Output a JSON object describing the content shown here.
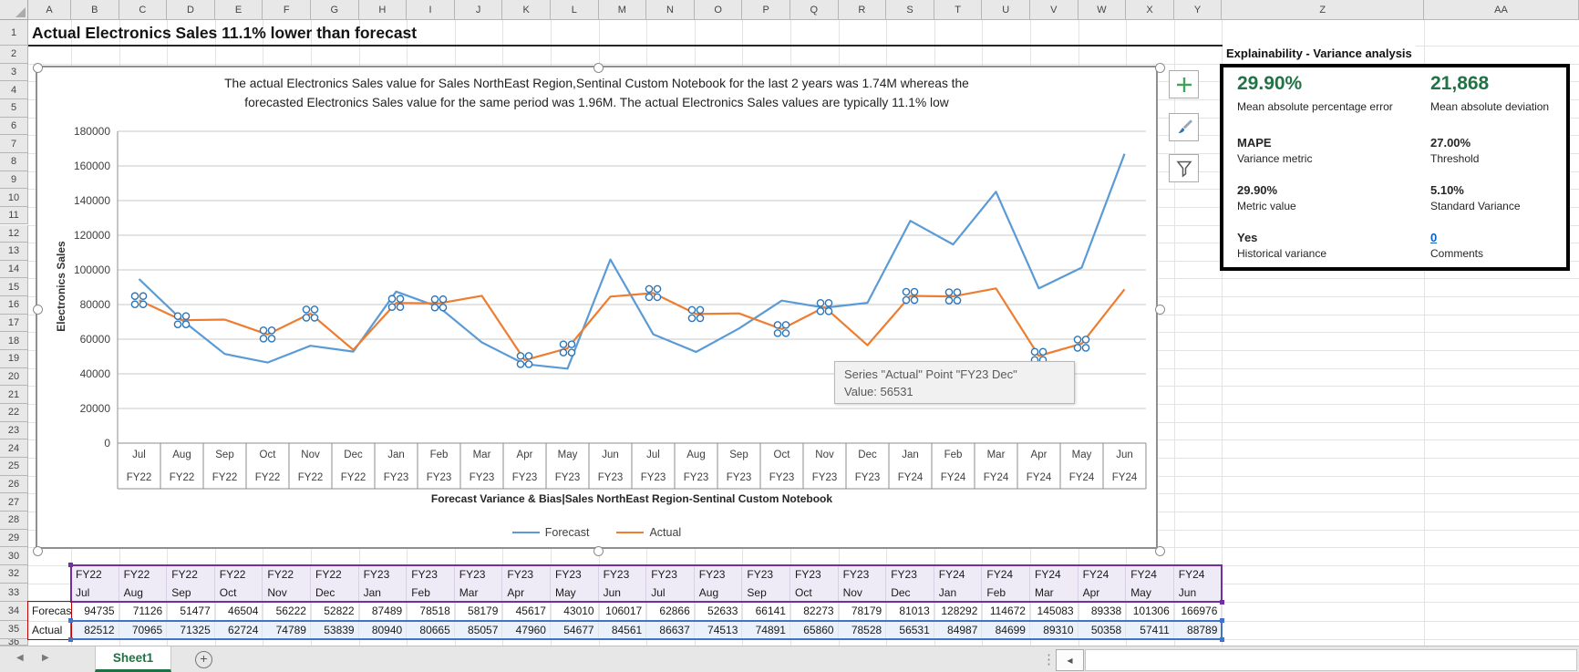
{
  "app": {
    "title_cell": "Actual Electronics Sales 11.1% lower than forecast"
  },
  "spreadsheet": {
    "columns": [
      "A",
      "B",
      "C",
      "D",
      "E",
      "F",
      "G",
      "H",
      "I",
      "J",
      "K",
      "L",
      "M",
      "N",
      "O",
      "P",
      "Q",
      "R",
      "S",
      "T",
      "U",
      "V",
      "W",
      "X",
      "Y",
      "Z",
      "AA"
    ],
    "rows": [
      1,
      2,
      3,
      4,
      5,
      6,
      7,
      8,
      9,
      10,
      11,
      12,
      13,
      14,
      15,
      16,
      17,
      18,
      19,
      20,
      21,
      22,
      23,
      24,
      25,
      26,
      27,
      28,
      29,
      30,
      32,
      33,
      34,
      35,
      36
    ],
    "sheet_tab": "Sheet1",
    "nav_back": "◀",
    "nav_fwd": "▶",
    "new_sheet": "+",
    "scroll_left_arrow": "◀",
    "scroll_dots": "⋮"
  },
  "chart_data": {
    "type": "line",
    "title_lines": [
      "The actual Electronics Sales value for Sales NorthEast Region,Sentinal Custom Notebook for the last 2 years was 1.74M whereas the",
      "forecasted Electronics Sales value for the same period was 1.96M. The actual Electronics Sales values are typically 11.1% low"
    ],
    "ylabel": "Electronics Sales",
    "xlabel": "Forecast Variance & Bias|Sales NorthEast Region-Sentinal Custom Notebook",
    "ylim": [
      0,
      180000
    ],
    "ytick_step": 20000,
    "ytick_labels": [
      "180000",
      "160000",
      "140000",
      "120000",
      "100000",
      "80000",
      "60000",
      "40000",
      "20000",
      "0"
    ],
    "grid": true,
    "legend_position": "bottom",
    "categories_month": [
      "Jul",
      "Aug",
      "Sep",
      "Oct",
      "Nov",
      "Dec",
      "Jan",
      "Feb",
      "Mar",
      "Apr",
      "May",
      "Jun",
      "Jul",
      "Aug",
      "Sep",
      "Oct",
      "Nov",
      "Dec",
      "Jan",
      "Feb",
      "Mar",
      "Apr",
      "May",
      "Jun"
    ],
    "categories_fy": [
      "FY22",
      "FY22",
      "FY22",
      "FY22",
      "FY22",
      "FY22",
      "FY23",
      "FY23",
      "FY23",
      "FY23",
      "FY23",
      "FY23",
      "FY23",
      "FY23",
      "FY23",
      "FY23",
      "FY23",
      "FY23",
      "FY24",
      "FY24",
      "FY24",
      "FY24",
      "FY24",
      "FY24"
    ],
    "series": [
      {
        "name": "Forecast",
        "color": "#5B9BD5",
        "values": [
          94735,
          71126,
          51477,
          46504,
          56222,
          52822,
          87489,
          78518,
          58179,
          45617,
          43010,
          106017,
          62866,
          52633,
          66141,
          82273,
          78179,
          81013,
          128292,
          114672,
          145083,
          89338,
          101306,
          166976
        ]
      },
      {
        "name": "Actual",
        "color": "#ED7D31",
        "selected": true,
        "values": [
          82512,
          70965,
          71325,
          62724,
          74789,
          53839,
          80940,
          80665,
          85057,
          47960,
          54677,
          84561,
          86637,
          74513,
          74891,
          65860,
          78528,
          56531,
          84987,
          84699,
          89310,
          50358,
          57411,
          88789
        ],
        "marked_point_indices": [
          0,
          1,
          3,
          4,
          6,
          7,
          9,
          10,
          12,
          13,
          15,
          16,
          18,
          19,
          21,
          22
        ]
      }
    ]
  },
  "chart_tooltip": {
    "line1": "Series \"Actual\" Point \"FY23 Dec\"",
    "line2": "Value: 56531"
  },
  "panel": {
    "header": "Explainability - Variance analysis",
    "metrics": [
      {
        "value": "29.90%",
        "label": "Mean absolute percentage error",
        "emphasis": "big-green"
      },
      {
        "value": "21,868",
        "label": "Mean absolute deviation",
        "emphasis": "big-green"
      },
      {
        "value": "MAPE",
        "label": "Variance metric",
        "emphasis": "bold"
      },
      {
        "value": "27.00%",
        "label": "Threshold",
        "emphasis": "bold"
      },
      {
        "value": "29.90%",
        "label": "Metric value",
        "emphasis": "bold"
      },
      {
        "value": "5.10%",
        "label": "Standard Variance",
        "emphasis": "bold"
      },
      {
        "value": "Yes",
        "label": "Historical variance",
        "emphasis": "bold"
      },
      {
        "value": "0",
        "label": "Comments",
        "emphasis": "link"
      }
    ]
  },
  "data_table": {
    "fy_row": [
      "FY22",
      "FY22",
      "FY22",
      "FY22",
      "FY22",
      "FY22",
      "FY23",
      "FY23",
      "FY23",
      "FY23",
      "FY23",
      "FY23",
      "FY23",
      "FY23",
      "FY23",
      "FY23",
      "FY23",
      "FY23",
      "FY24",
      "FY24",
      "FY24",
      "FY24",
      "FY24",
      "FY24"
    ],
    "month_row": [
      "Jul",
      "Aug",
      "Sep",
      "Oct",
      "Nov",
      "Dec",
      "Jan",
      "Feb",
      "Mar",
      "Apr",
      "May",
      "Jun",
      "Jul",
      "Aug",
      "Sep",
      "Oct",
      "Nov",
      "Dec",
      "Jan",
      "Feb",
      "Mar",
      "Apr",
      "May",
      "Jun"
    ],
    "series_rows": [
      {
        "label": "Forecast",
        "values": [
          "94735",
          "71126",
          "51477",
          "46504",
          "56222",
          "52822",
          "87489",
          "78518",
          "58179",
          "45617",
          "43010",
          "106017",
          "62866",
          "52633",
          "66141",
          "82273",
          "78179",
          "81013",
          "128292",
          "114672",
          "145083",
          "89338",
          "101306",
          "166976"
        ]
      },
      {
        "label": "Actual",
        "values": [
          "82512",
          "70965",
          "71325",
          "62724",
          "74789",
          "53839",
          "80940",
          "80665",
          "85057",
          "47960",
          "54677",
          "84561",
          "86637",
          "74513",
          "74891",
          "65860",
          "78528",
          "56531",
          "84987",
          "84699",
          "89310",
          "50358",
          "57411",
          "88789"
        ]
      }
    ]
  },
  "colors": {
    "forecast_blue": "#5B9BD5",
    "actual_orange": "#ED7D31",
    "marker_blue": "#2E75B6",
    "excel_green": "#217346",
    "big_value_green": "#217346",
    "link_blue": "#0563C1",
    "category_box_purple": "#7030A0",
    "values_box_blue": "#4472C4",
    "names_box_red": "#C00000",
    "plus_icon_green": "#3FA45A"
  }
}
